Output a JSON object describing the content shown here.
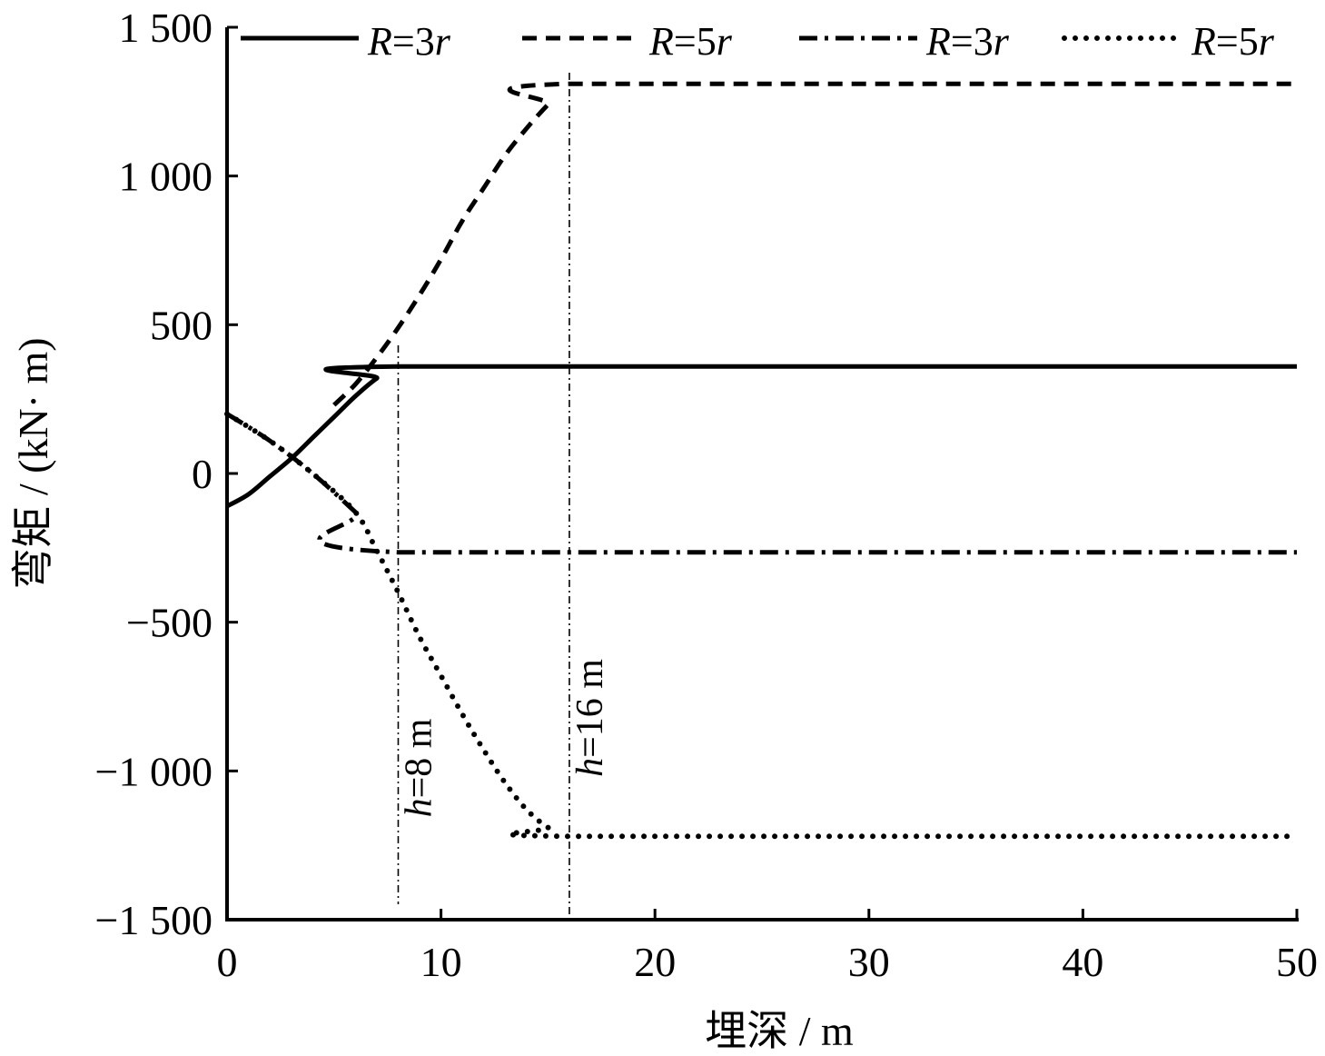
{
  "chart_data": {
    "type": "line",
    "xlabel": "埋深 / m",
    "ylabel": "弯矩 / (kN· m)",
    "xlim": [
      0,
      50
    ],
    "ylim": [
      -1500,
      1500
    ],
    "x_ticks": [
      0,
      10,
      20,
      30,
      40,
      50
    ],
    "x_tick_labels": [
      "0",
      "10",
      "20",
      "30",
      "40",
      "50"
    ],
    "y_ticks": [
      -1500,
      -1000,
      -500,
      0,
      500,
      1000,
      1500
    ],
    "y_tick_labels": [
      "−1 500",
      "−1 000",
      "−500",
      "0",
      "500",
      "1 000",
      "1 500"
    ],
    "grid": false,
    "legend_position": "top",
    "series": [
      {
        "name": "R=3r",
        "name_parts": {
          "italic_var": "R",
          "mid": "=3",
          "italic_suffix": "r"
        },
        "style": "solid",
        "x": [
          0,
          1,
          2,
          3,
          4,
          5,
          6,
          7,
          8,
          50
        ],
        "y": [
          -110,
          -70,
          -10,
          50,
          120,
          190,
          260,
          320,
          360,
          360
        ]
      },
      {
        "name": "R=5r",
        "name_parts": {
          "italic_var": "R",
          "mid": "=5",
          "italic_suffix": "r"
        },
        "style": "dashed",
        "x": [
          5,
          6,
          7,
          8,
          9,
          10,
          11,
          12,
          13,
          14,
          15,
          16,
          50
        ],
        "y": [
          230,
          300,
          390,
          490,
          600,
          720,
          850,
          960,
          1070,
          1160,
          1240,
          1310,
          1310
        ]
      },
      {
        "name": "R=3r",
        "name_parts": {
          "italic_var": "R",
          "mid": "=3",
          "italic_suffix": "r"
        },
        "style": "dashdot",
        "x": [
          0,
          2,
          4,
          6,
          8,
          50
        ],
        "y": [
          200,
          110,
          0,
          -130,
          -265,
          -265
        ]
      },
      {
        "name": "R=5r",
        "name_parts": {
          "italic_var": "R",
          "mid": "=5",
          "italic_suffix": "r"
        },
        "style": "dotted",
        "x": [
          0,
          2,
          4,
          6,
          7,
          8,
          9,
          10,
          11,
          12,
          13,
          14,
          15,
          16,
          50
        ],
        "y": [
          200,
          110,
          0,
          -130,
          -260,
          -400,
          -550,
          -680,
          -810,
          -930,
          -1040,
          -1130,
          -1190,
          -1220,
          -1220
        ]
      }
    ],
    "annotations": [
      {
        "x": 8,
        "label_var": "h",
        "label_rest": "=8 m"
      },
      {
        "x": 16,
        "label_var": "h",
        "label_rest": "=16 m"
      }
    ]
  }
}
